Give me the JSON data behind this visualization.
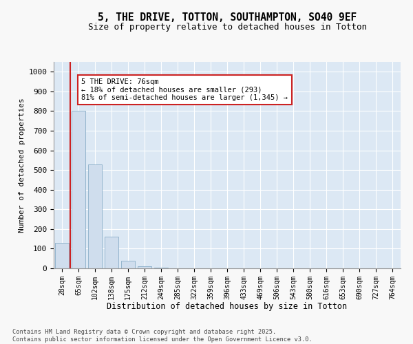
{
  "title": "5, THE DRIVE, TOTTON, SOUTHAMPTON, SO40 9EF",
  "subtitle": "Size of property relative to detached houses in Totton",
  "xlabel": "Distribution of detached houses by size in Totton",
  "ylabel": "Number of detached properties",
  "bar_color": "#cfdded",
  "bar_edge_color": "#8aaec8",
  "background_color": "#dce8f4",
  "grid_color": "#ffffff",
  "vline_color": "#cc2222",
  "vline_x": 0.5,
  "annotation_text": "5 THE DRIVE: 76sqm\n← 18% of detached houses are smaller (293)\n81% of semi-detached houses are larger (1,345) →",
  "annotation_box_facecolor": "#ffffff",
  "annotation_border_color": "#cc2222",
  "categories": [
    "28sqm",
    "65sqm",
    "102sqm",
    "138sqm",
    "175sqm",
    "212sqm",
    "249sqm",
    "285sqm",
    "322sqm",
    "359sqm",
    "396sqm",
    "433sqm",
    "469sqm",
    "506sqm",
    "543sqm",
    "580sqm",
    "616sqm",
    "653sqm",
    "690sqm",
    "727sqm",
    "764sqm"
  ],
  "values": [
    130,
    800,
    530,
    160,
    40,
    10,
    2,
    0,
    0,
    0,
    0,
    0,
    0,
    0,
    0,
    0,
    0,
    0,
    0,
    0,
    0
  ],
  "ylim": [
    0,
    1050
  ],
  "yticks": [
    0,
    100,
    200,
    300,
    400,
    500,
    600,
    700,
    800,
    900,
    1000
  ],
  "footnote": "Contains HM Land Registry data © Crown copyright and database right 2025.\nContains public sector information licensed under the Open Government Licence v3.0.",
  "fig_bg": "#f8f8f8"
}
